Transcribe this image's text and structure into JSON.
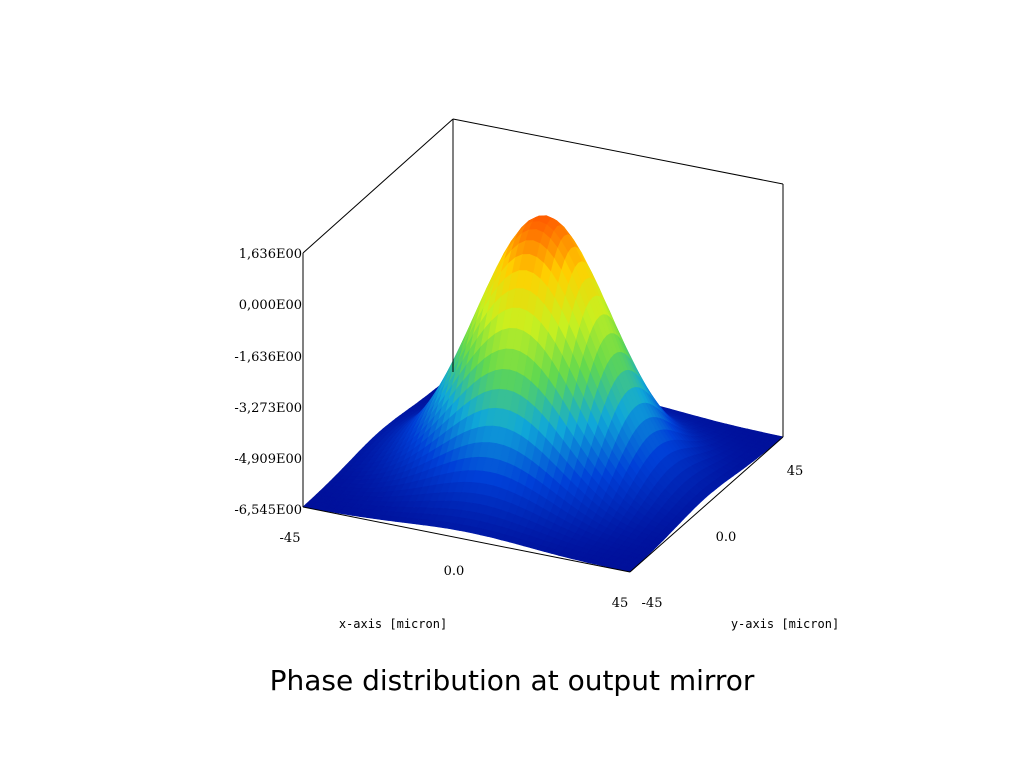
{
  "caption": "Phase distribution at output mirror",
  "chart_data": {
    "type": "surface3d",
    "title": "",
    "xlabel": "x-axis [micron]",
    "ylabel": "y-axis [micron]",
    "zlabel": "",
    "x_range": [
      -45,
      45
    ],
    "y_range": [
      -45,
      45
    ],
    "z_range": [
      -6.545,
      1.636
    ],
    "x_ticks": [
      "-45",
      "0.0",
      "45"
    ],
    "y_ticks": [
      "-45",
      "0.0",
      "45"
    ],
    "z_ticks": [
      "1,636E00",
      "0,000E00",
      "-1,636E00",
      "-3,273E00",
      "-4,909E00",
      "-6,545E00"
    ],
    "z_tick_values": [
      1.636,
      0.0,
      -1.636,
      -3.273,
      -4.909,
      -6.545
    ],
    "surface": {
      "shape": "gaussian-like central dome on flat floor",
      "peak_value": 1.636,
      "floor_value": -6.545,
      "peak_location": [
        0,
        0
      ]
    },
    "colormap": [
      "#00109a",
      "#0040d8",
      "#10a8d8",
      "#60d850",
      "#c8f020",
      "#ffd000",
      "#ff5a00"
    ]
  }
}
